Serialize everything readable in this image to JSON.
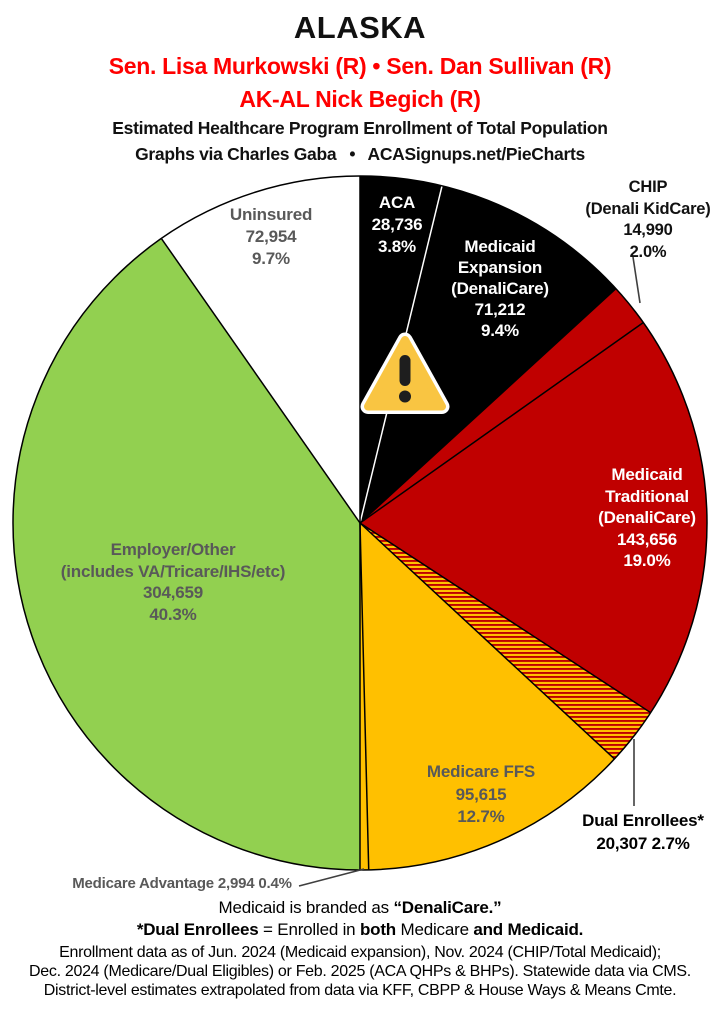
{
  "header": {
    "state": "ALASKA",
    "reps_line1": "Sen. Lisa Murkowski (R) • Sen. Dan Sullivan (R)",
    "reps_line2": "AK-AL Nick Begich (R)",
    "subtitle1": "Estimated Healthcare Program Enrollment of Total Population",
    "subtitle2": "Graphs via Charles Gaba  •  ACASignups.net/PieCharts",
    "accent_color": "#FF0000"
  },
  "chart_data": {
    "type": "pie",
    "title": "Estimated Healthcare Program Enrollment of Total Population",
    "start_angle_deg": 0,
    "direction": "clockwise",
    "total_pct": 100.0,
    "slices": [
      {
        "id": "aca",
        "name": "ACA",
        "label_lines": [
          "ACA",
          "28,736",
          "3.8%"
        ],
        "value": 28736,
        "value_text": "28,736",
        "pct": 3.8,
        "pct_text": "3.8%",
        "fill": "#000000",
        "hatch": false,
        "label_color": "#ffffff"
      },
      {
        "id": "medicaid_expansion",
        "name": "Medicaid Expansion (DenaliCare)",
        "label_lines": [
          "Medicaid",
          "Expansion",
          "(DenaliCare)",
          "71,212",
          "9.4%"
        ],
        "value": 71212,
        "value_text": "71,212",
        "pct": 9.4,
        "pct_text": "9.4%",
        "fill": "#000000",
        "hatch": false,
        "label_color": "#ffffff"
      },
      {
        "id": "chip",
        "name": "CHIP (Denali KidCare)",
        "label_lines": [
          "CHIP",
          "(Denali KidCare)",
          "14,990",
          "2.0%"
        ],
        "value": 14990,
        "value_text": "14,990",
        "pct": 2.0,
        "pct_text": "2.0%",
        "fill": "#C00000",
        "hatch": false,
        "label_color": "#111111"
      },
      {
        "id": "medicaid_traditional",
        "name": "Medicaid Traditional (DenaliCare)",
        "label_lines": [
          "Medicaid",
          "Traditional",
          "(DenaliCare)",
          "143,656",
          "19.0%"
        ],
        "value": 143656,
        "value_text": "143,656",
        "pct": 19.0,
        "pct_text": "19.0%",
        "fill": "#C00000",
        "hatch": false,
        "label_color": "#ffffff"
      },
      {
        "id": "dual_enrollees",
        "name": "Dual Enrollees",
        "label_lines": [
          "Dual Enrollees*",
          "20,307 2.7%"
        ],
        "value": 20307,
        "value_text": "20,307",
        "pct": 2.7,
        "pct_text": "2.7%",
        "fill": "#FFC000",
        "hatch": true,
        "hatch_stripe": "#C00000",
        "label_color": "#000000"
      },
      {
        "id": "medicare_ffs",
        "name": "Medicare FFS",
        "label_lines": [
          "Medicare FFS",
          "95,615",
          "12.7%"
        ],
        "value": 95615,
        "value_text": "95,615",
        "pct": 12.7,
        "pct_text": "12.7%",
        "fill": "#FFC000",
        "hatch": false,
        "label_color": "#595959"
      },
      {
        "id": "medicare_advantage",
        "name": "Medicare Advantage",
        "label_lines": [
          "Medicare Advantage 2,994 0.4%"
        ],
        "value": 2994,
        "value_text": "2,994",
        "pct": 0.4,
        "pct_text": "0.4%",
        "fill": "#FFC000",
        "hatch": false,
        "label_color": "#595959"
      },
      {
        "id": "employer_other",
        "name": "Employer/Other",
        "label_lines": [
          "Employer/Other",
          "(includes VA/Tricare/IHS/etc)",
          "304,659",
          "40.3%"
        ],
        "value": 304659,
        "value_text": "304,659",
        "pct": 40.3,
        "pct_text": "40.3%",
        "fill": "#92D050",
        "hatch": false,
        "label_color": "#595959"
      },
      {
        "id": "uninsured",
        "name": "Uninsured",
        "label_lines": [
          "Uninsured",
          "72,954",
          "9.7%"
        ],
        "value": 72954,
        "value_text": "72,954",
        "pct": 9.7,
        "pct_text": "9.7%",
        "fill": "#ffffff",
        "hatch": false,
        "label_color": "#595959"
      }
    ]
  },
  "warning_icon": {
    "name": "warning-triangle",
    "fill": "#F9C542",
    "mark_color": "#1e1e1e"
  },
  "footnotes": {
    "note1_segments": [
      {
        "text": "Medicaid is branded as ",
        "bold": false
      },
      {
        "text": "“DenaliCare.”",
        "bold": true
      }
    ],
    "note2_segments": [
      {
        "text": "*Dual Enrollees",
        "bold": true
      },
      {
        "text": " = Enrolled in ",
        "bold": false
      },
      {
        "text": "both",
        "bold": true
      },
      {
        "text": " Medicare ",
        "bold": false
      },
      {
        "text": "and Medicaid.",
        "bold": true
      }
    ],
    "source_lines": [
      "Enrollment data as of Jun. 2024 (Medicaid expansion), Nov. 2024 (CHIP/Total Medicaid);",
      "Dec. 2024 (Medicare/Dual Eligibles) or Feb. 2025 (ACA QHPs & BHPs). Statewide data via CMS.",
      "District-level estimates extrapolated from data via KFF, CBPP & House Ways & Means Cmte."
    ]
  }
}
